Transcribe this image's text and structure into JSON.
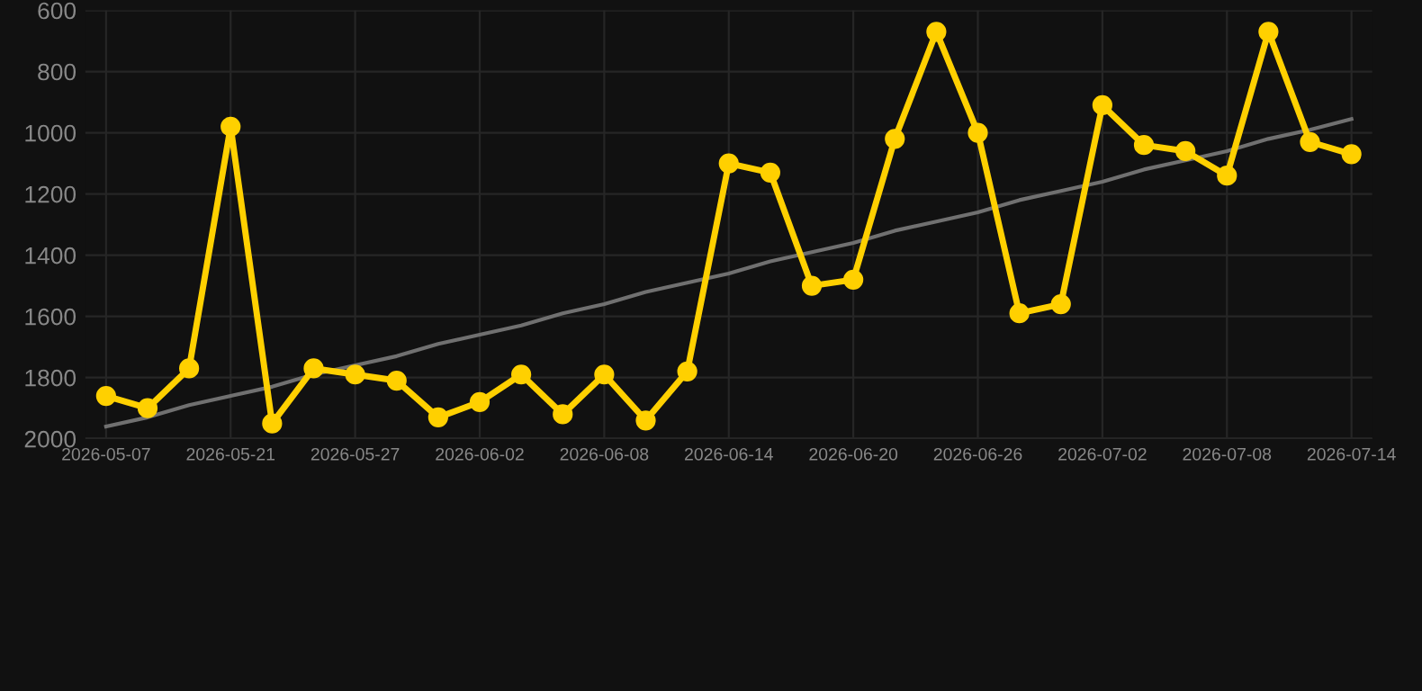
{
  "chart_data": {
    "type": "line",
    "categories": [
      "2026-05-07",
      null,
      null,
      "2026-05-21",
      null,
      null,
      "2026-05-27",
      null,
      null,
      "2026-06-02",
      null,
      null,
      "2026-06-08",
      null,
      null,
      "2026-06-14",
      null,
      null,
      "2026-06-20",
      null,
      null,
      "2026-06-26",
      null,
      null,
      "2026-07-02",
      null,
      null,
      "2026-07-08",
      null,
      null,
      "2026-07-14"
    ],
    "series": [
      {
        "color": "#ffd000",
        "values": [
          1860,
          1900,
          1770,
          980,
          1950,
          1770,
          1790,
          1810,
          1930,
          1880,
          1790,
          1920,
          1790,
          1940,
          1780,
          1100,
          1130,
          1500,
          1480,
          1020,
          670,
          1000,
          1590,
          1560,
          910,
          1040,
          1060,
          1140,
          670,
          1030,
          1070
        ]
      },
      {
        "type": "line",
        "color": "#707070",
        "marker": "none",
        "values": [
          1960,
          1930,
          1890,
          1860,
          1830,
          1790,
          1760,
          1730,
          1690,
          1660,
          1630,
          1590,
          1560,
          1520,
          1490,
          1460,
          1420,
          1390,
          1360,
          1320,
          1290,
          1260,
          1220,
          1190,
          1160,
          1120,
          1090,
          1060,
          1020,
          990,
          955
        ]
      }
    ],
    "ylim": [
      2000,
      600
    ],
    "yticks": [
      600,
      800,
      1000,
      1200,
      1400,
      1600,
      1800,
      2000
    ],
    "grid": true,
    "marker": "circle",
    "line_style": "solid"
  }
}
